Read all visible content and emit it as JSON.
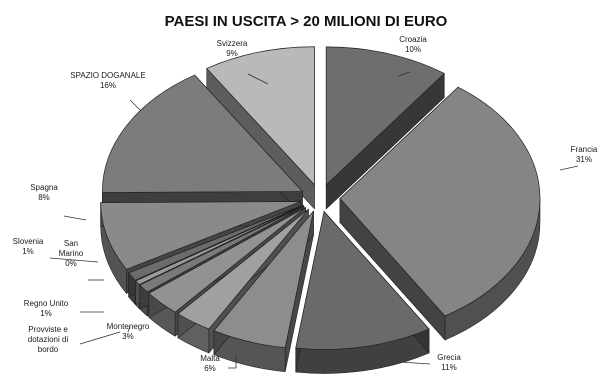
{
  "chart_data": {
    "type": "pie",
    "title": "PAESI IN USCITA > 20 MILIONI DI EURO",
    "slices": [
      {
        "name": "Croazia",
        "value": 10,
        "pct_label": "10%",
        "color": "#6e6e6e"
      },
      {
        "name": "Francia",
        "value": 31,
        "pct_label": "31%",
        "color": "#858585"
      },
      {
        "name": "Grecia",
        "value": 11,
        "pct_label": "11%",
        "color": "#6a6a6a"
      },
      {
        "name": "Malta",
        "value": 6,
        "pct_label": "6%",
        "color": "#8d8d8d"
      },
      {
        "name": "Provviste e dotazioni di bordo",
        "value": 3,
        "pct_label": "",
        "color": "#a0a0a0"
      },
      {
        "name": "Montenegro",
        "value": 3,
        "pct_label": "3%",
        "color": "#929292"
      },
      {
        "name": "Regno Unito",
        "value": 1,
        "pct_label": "1%",
        "color": "#7a7a7a"
      },
      {
        "name": "San Marino",
        "value": 0.5,
        "pct_label": "0%",
        "color": "#9a9a9a"
      },
      {
        "name": "Slovenia",
        "value": 1,
        "pct_label": "1%",
        "color": "#6c6c6c"
      },
      {
        "name": "Spagna",
        "value": 8,
        "pct_label": "8%",
        "color": "#8a8a8a"
      },
      {
        "name": "SPAZIO DOGANALE",
        "value": 16,
        "pct_label": "16%",
        "color": "#7c7c7c"
      },
      {
        "name": "Svizzera",
        "value": 9,
        "pct_label": "9%",
        "color": "#b9b9b9"
      }
    ],
    "legend": "none"
  }
}
